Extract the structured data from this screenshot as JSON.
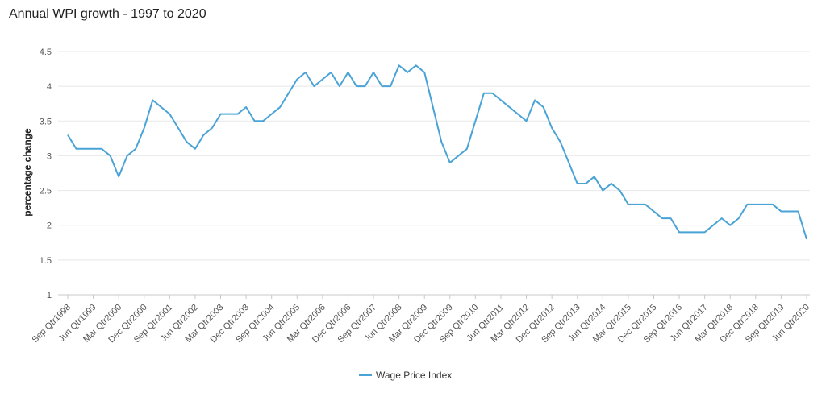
{
  "chart_data": {
    "type": "line",
    "title": "Annual WPI growth - 1997 to 2020",
    "xlabel": "",
    "ylabel": "percentage change",
    "ylim": [
      1,
      4.5
    ],
    "yticks": [
      "1",
      "1.5",
      "2",
      "2.5",
      "3",
      "3.5",
      "4",
      "4.5"
    ],
    "grid": true,
    "legend": "bottom-center",
    "xtick_labels": [
      "Sep Qtr1998",
      "Jun Qtr1999",
      "Mar Qtr2000",
      "Dec Qtr2000",
      "Sep Qtr2001",
      "Jun Qtr2002",
      "Mar Qtr2003",
      "Dec Qtr2003",
      "Sep Qtr2004",
      "Jun Qtr2005",
      "Mar Qtr2006",
      "Dec Qtr2006",
      "Sep Qtr2007",
      "Jun Qtr2008",
      "Mar Qtr2009",
      "Dec Qtr2009",
      "Sep Qtr2010",
      "Jun Qtr2011",
      "Mar Qtr2012",
      "Dec Qtr2012",
      "Sep Qtr2013",
      "Jun Qtr2014",
      "Mar Qtr2015",
      "Dec Qtr2015",
      "Sep Qtr2016",
      "Jun Qtr2017",
      "Mar Qtr2018",
      "Dec Qtr2018",
      "Sep Qtr2019",
      "Jun Qtr2020"
    ],
    "series": [
      {
        "name": "Wage Price Index",
        "color": "#4aa3d6",
        "values": [
          3.3,
          3.1,
          3.1,
          3.1,
          3.1,
          3.0,
          2.7,
          3.0,
          3.1,
          3.4,
          3.8,
          3.7,
          3.6,
          3.4,
          3.2,
          3.1,
          3.3,
          3.4,
          3.6,
          3.6,
          3.6,
          3.7,
          3.5,
          3.5,
          3.6,
          3.7,
          3.9,
          4.1,
          4.2,
          4.0,
          4.1,
          4.2,
          4.0,
          4.2,
          4.0,
          4.0,
          4.2,
          4.0,
          4.0,
          4.3,
          4.2,
          4.3,
          4.2,
          3.7,
          3.2,
          2.9,
          3.0,
          3.1,
          3.5,
          3.9,
          3.9,
          3.8,
          3.7,
          3.6,
          3.5,
          3.8,
          3.7,
          3.4,
          3.2,
          2.9,
          2.6,
          2.6,
          2.7,
          2.5,
          2.6,
          2.5,
          2.3,
          2.3,
          2.3,
          2.2,
          2.1,
          2.1,
          1.9,
          1.9,
          1.9,
          1.9,
          2.0,
          2.1,
          2.0,
          2.1,
          2.3,
          2.3,
          2.3,
          2.3,
          2.2,
          2.2,
          2.2,
          1.8
        ]
      }
    ]
  }
}
